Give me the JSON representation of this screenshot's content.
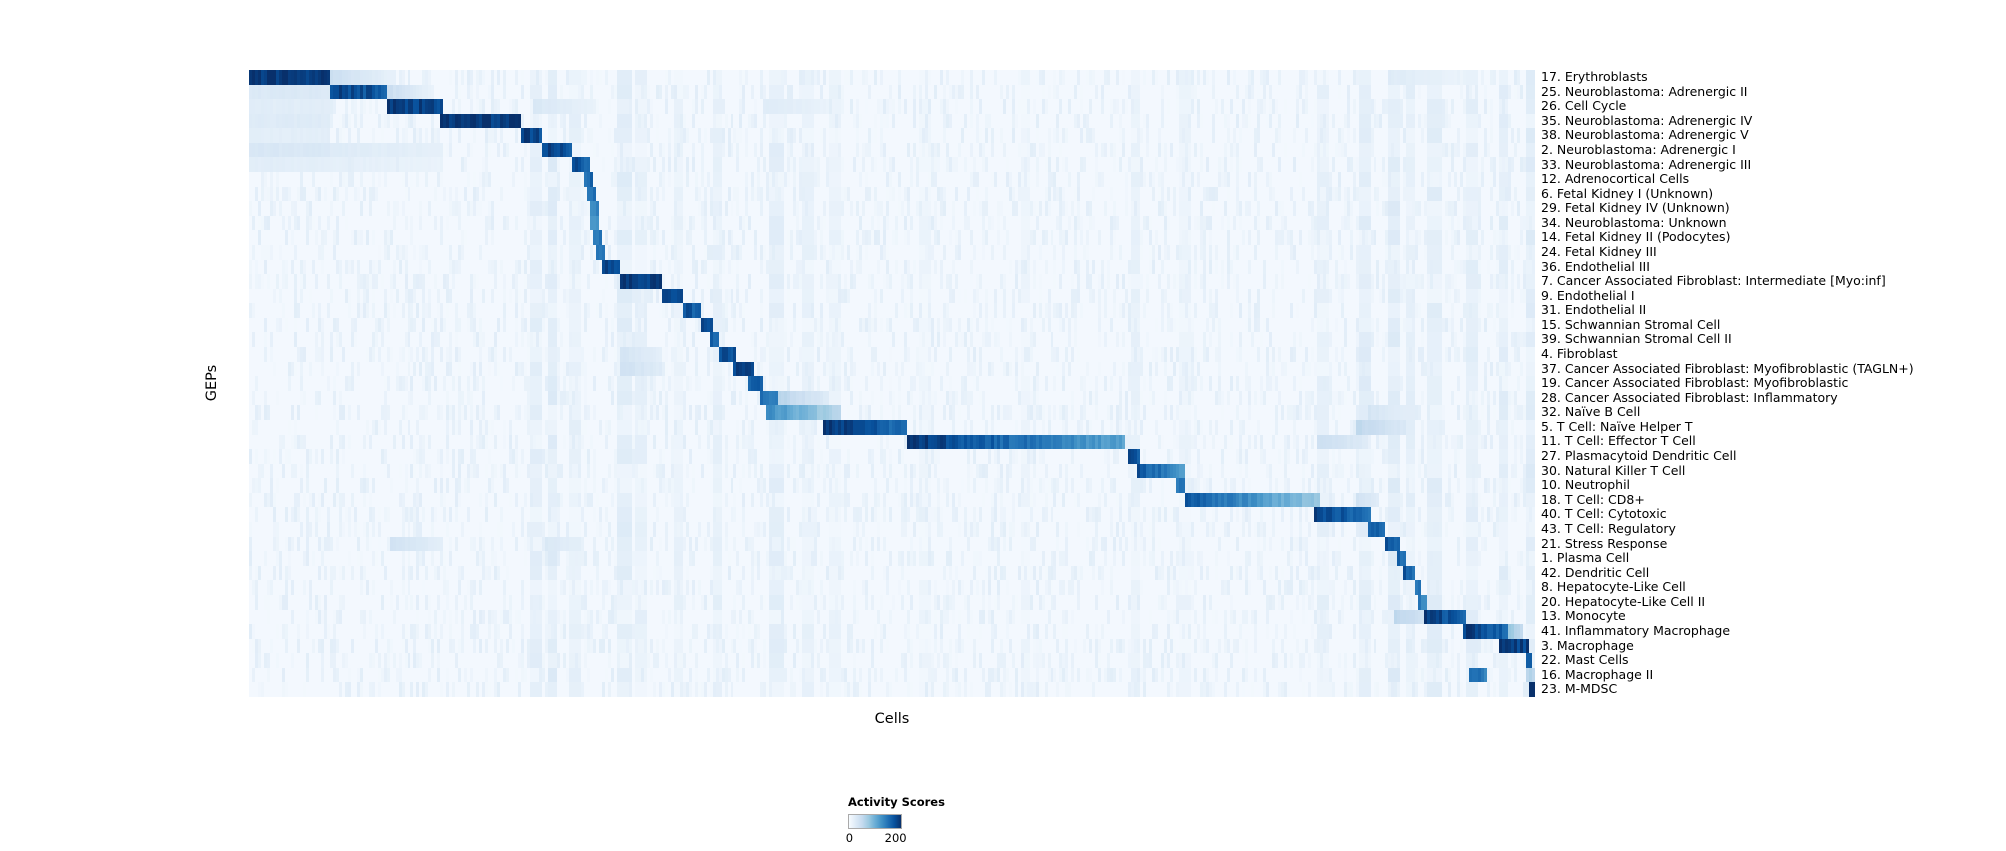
{
  "chart_data": {
    "type": "heatmap",
    "title": "",
    "xlabel": "Cells",
    "ylabel": "GEPs",
    "colormap": "Blues",
    "value_range": [
      0,
      200
    ],
    "base_value": 4,
    "legend": {
      "title": "Activity Scores",
      "tick_labels": [
        "0",
        "200"
      ],
      "ticks": [
        0,
        200
      ]
    },
    "color_stops": [
      [
        0.0,
        "#f7fbff"
      ],
      [
        0.125,
        "#deebf7"
      ],
      [
        0.25,
        "#c6dbef"
      ],
      [
        0.375,
        "#9ecae1"
      ],
      [
        0.5,
        "#6baed6"
      ],
      [
        0.625,
        "#4292c6"
      ],
      [
        0.75,
        "#2171b5"
      ],
      [
        0.875,
        "#08519c"
      ],
      [
        1.0,
        "#08306b"
      ]
    ],
    "rows": [
      {
        "label": "17. Erythroblasts",
        "segments": [
          [
            0.0,
            0.062,
            200,
            190
          ],
          [
            0.062,
            0.115,
            45,
            15
          ],
          [
            0.885,
            0.945,
            25,
            12
          ]
        ]
      },
      {
        "label": "25. Neuroblastoma: Adrenergic II",
        "segments": [
          [
            0.0,
            0.063,
            28,
            28
          ],
          [
            0.063,
            0.107,
            185,
            170
          ],
          [
            0.107,
            0.145,
            45,
            15
          ]
        ]
      },
      {
        "label": "26. Cell Cycle",
        "segments": [
          [
            0.0,
            0.063,
            22,
            22
          ],
          [
            0.107,
            0.151,
            195,
            180
          ],
          [
            0.22,
            0.27,
            30,
            15
          ],
          [
            0.4,
            0.46,
            25,
            12
          ]
        ]
      },
      {
        "label": "35. Neuroblastoma: Adrenergic IV",
        "segments": [
          [
            0.0,
            0.063,
            25,
            25
          ],
          [
            0.149,
            0.212,
            200,
            190
          ]
        ]
      },
      {
        "label": "38. Neuroblastoma: Adrenergic V",
        "segments": [
          [
            0.0,
            0.063,
            20,
            20
          ],
          [
            0.212,
            0.229,
            190,
            180
          ]
        ]
      },
      {
        "label": "2. Neuroblastoma: Adrenergic I",
        "segments": [
          [
            0.0,
            0.063,
            30,
            30
          ],
          [
            0.063,
            0.15,
            25,
            18
          ],
          [
            0.229,
            0.251,
            185,
            175
          ]
        ]
      },
      {
        "label": "33. Neuroblastoma: Adrenergic III",
        "segments": [
          [
            0.0,
            0.15,
            22,
            14
          ],
          [
            0.251,
            0.266,
            175,
            165
          ]
        ]
      },
      {
        "label": "12. Adrenocortical Cells",
        "segments": [
          [
            0.261,
            0.267,
            155,
            155
          ]
        ]
      },
      {
        "label": "6. Fetal Kidney I (Unknown)",
        "segments": [
          [
            0.263,
            0.269,
            145,
            145
          ]
        ]
      },
      {
        "label": "29. Fetal Kidney IV (Unknown)",
        "segments": [
          [
            0.265,
            0.271,
            135,
            135
          ]
        ]
      },
      {
        "label": "34. Neuroblastoma: Unknown",
        "segments": [
          [
            0.266,
            0.272,
            125,
            125
          ]
        ]
      },
      {
        "label": "14. Fetal Kidney II (Podocytes)",
        "segments": [
          [
            0.268,
            0.274,
            150,
            150
          ]
        ]
      },
      {
        "label": "24. Fetal Kidney III",
        "segments": [
          [
            0.27,
            0.276,
            140,
            140
          ]
        ]
      },
      {
        "label": "36. Endothelial III",
        "segments": [
          [
            0.274,
            0.288,
            185,
            170
          ]
        ]
      },
      {
        "label": "7. Cancer Associated Fibroblast: Intermediate [Myo:inf]",
        "segments": [
          [
            0.288,
            0.322,
            200,
            185
          ]
        ]
      },
      {
        "label": "9. Endothelial I",
        "segments": [
          [
            0.322,
            0.338,
            190,
            175
          ]
        ]
      },
      {
        "label": "31. Endothelial II",
        "segments": [
          [
            0.338,
            0.35,
            175,
            165
          ]
        ]
      },
      {
        "label": "15. Schwannian Stromal Cell",
        "segments": [
          [
            0.35,
            0.361,
            180,
            170
          ]
        ]
      },
      {
        "label": "39. Schwannian Stromal Cell II",
        "segments": [
          [
            0.358,
            0.366,
            160,
            150
          ]
        ]
      },
      {
        "label": "4. Fibroblast",
        "segments": [
          [
            0.288,
            0.32,
            35,
            20
          ],
          [
            0.365,
            0.378,
            180,
            170
          ]
        ]
      },
      {
        "label": "37. Cancer Associated Fibroblast: Myofibroblastic (TAGLN+)",
        "segments": [
          [
            0.288,
            0.32,
            40,
            25
          ],
          [
            0.376,
            0.392,
            190,
            175
          ]
        ]
      },
      {
        "label": "19. Cancer Associated Fibroblast: Myofibroblastic",
        "segments": [
          [
            0.388,
            0.4,
            170,
            160
          ]
        ]
      },
      {
        "label": "28. Cancer Associated Fibroblast: Inflammatory",
        "segments": [
          [
            0.397,
            0.412,
            155,
            140
          ],
          [
            0.412,
            0.452,
            60,
            25
          ]
        ]
      },
      {
        "label": "32. Naïve B Cell",
        "segments": [
          [
            0.402,
            0.46,
            130,
            55
          ],
          [
            0.87,
            0.9,
            35,
            20
          ]
        ]
      },
      {
        "label": "5. T Cell: Naïve Helper T",
        "segments": [
          [
            0.447,
            0.512,
            200,
            150
          ],
          [
            0.86,
            0.9,
            55,
            30
          ]
        ]
      },
      {
        "label": "11. T Cell: Effector T Cell",
        "segments": [
          [
            0.512,
            0.682,
            195,
            110
          ],
          [
            0.83,
            0.87,
            45,
            25
          ]
        ]
      },
      {
        "label": "27. Plasmacytoid Dendritic Cell",
        "segments": [
          [
            0.684,
            0.692,
            180,
            170
          ]
        ]
      },
      {
        "label": "30. Natural Killer T Cell",
        "segments": [
          [
            0.691,
            0.727,
            175,
            120
          ]
        ]
      },
      {
        "label": "10. Neutrophil",
        "segments": [
          [
            0.721,
            0.728,
            150,
            140
          ]
        ]
      },
      {
        "label": "18. T Cell: CD8+",
        "segments": [
          [
            0.727,
            0.832,
            170,
            75
          ],
          [
            0.86,
            0.88,
            40,
            25
          ]
        ]
      },
      {
        "label": "40. T Cell: Cytotoxic",
        "segments": [
          [
            0.829,
            0.871,
            190,
            150
          ]
        ]
      },
      {
        "label": "43. T Cell: Regulatory",
        "segments": [
          [
            0.869,
            0.883,
            165,
            150
          ]
        ]
      },
      {
        "label": "21. Stress Response",
        "segments": [
          [
            0.11,
            0.15,
            40,
            20
          ],
          [
            0.23,
            0.26,
            30,
            15
          ],
          [
            0.884,
            0.895,
            170,
            155
          ]
        ]
      },
      {
        "label": "1. Plasma Cell",
        "segments": [
          [
            0.893,
            0.9,
            160,
            150
          ]
        ]
      },
      {
        "label": "42. Dendritic Cell",
        "segments": [
          [
            0.898,
            0.908,
            170,
            155
          ]
        ]
      },
      {
        "label": "8. Hepatocyte-Like Cell",
        "segments": [
          [
            0.906,
            0.912,
            150,
            140
          ]
        ]
      },
      {
        "label": "20. Hepatocyte-Like Cell II",
        "segments": [
          [
            0.91,
            0.916,
            140,
            130
          ]
        ]
      },
      {
        "label": "13. Monocyte",
        "segments": [
          [
            0.89,
            0.914,
            55,
            40
          ],
          [
            0.914,
            0.947,
            190,
            160
          ]
        ]
      },
      {
        "label": "41. Inflammatory Macrophage",
        "segments": [
          [
            0.945,
            0.978,
            190,
            160
          ],
          [
            0.978,
            0.99,
            80,
            50
          ]
        ]
      },
      {
        "label": "3. Macrophage",
        "segments": [
          [
            0.972,
            0.996,
            195,
            185
          ]
        ]
      },
      {
        "label": "22. Mast Cells",
        "segments": [
          [
            0.993,
            0.998,
            160,
            160
          ]
        ]
      },
      {
        "label": "16. Macrophage II",
        "segments": [
          [
            0.949,
            0.963,
            150,
            140
          ],
          [
            0.993,
            1.0,
            60,
            60
          ]
        ]
      },
      {
        "label": "23. M-MDSC",
        "segments": [
          [
            0.995,
            1.0,
            200,
            200
          ]
        ]
      }
    ],
    "column_streaks": [
      [
        0.218,
        0.01,
        18
      ],
      [
        0.232,
        0.008,
        22
      ],
      [
        0.248,
        0.01,
        16
      ],
      [
        0.285,
        0.012,
        20
      ],
      [
        0.3,
        0.01,
        16
      ],
      [
        0.33,
        0.008,
        14
      ],
      [
        0.36,
        0.008,
        16
      ],
      [
        0.405,
        0.012,
        18
      ],
      [
        0.43,
        0.01,
        14
      ],
      [
        0.452,
        0.008,
        12
      ],
      [
        0.52,
        0.01,
        10
      ],
      [
        0.6,
        0.008,
        10
      ],
      [
        0.686,
        0.008,
        14
      ],
      [
        0.724,
        0.008,
        12
      ],
      [
        0.83,
        0.01,
        16
      ],
      [
        0.862,
        0.01,
        20
      ],
      [
        0.886,
        0.01,
        22
      ],
      [
        0.9,
        0.008,
        18
      ],
      [
        0.916,
        0.012,
        20
      ],
      [
        0.946,
        0.01,
        18
      ],
      [
        0.972,
        0.008,
        20
      ],
      [
        0.994,
        0.006,
        22
      ]
    ],
    "noise": {
      "seed": 42,
      "density": 0.35,
      "max": 18
    }
  }
}
